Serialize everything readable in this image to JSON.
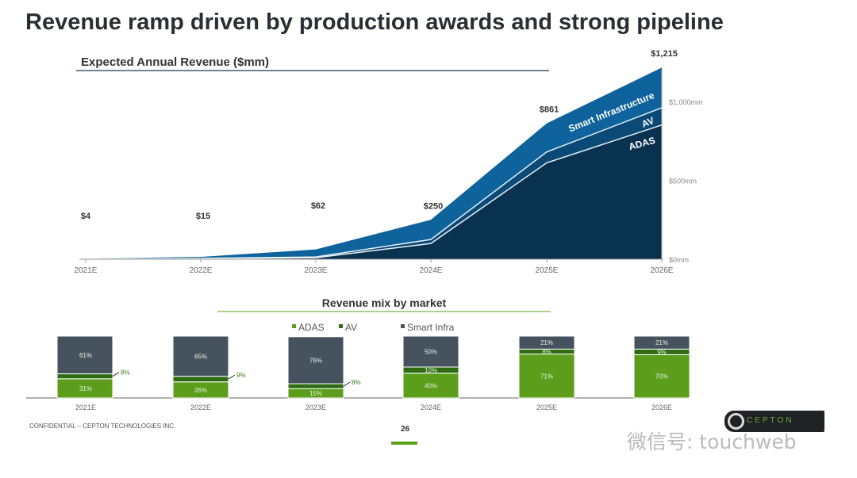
{
  "title": "Revenue ramp driven by production awards and strong pipeline",
  "footer": "CONFIDENTIAL – CEPTON TECHNOLOGIES INC.",
  "page_number": "26",
  "logo_text": "CEPTON",
  "watermark": "微信号: touchweb",
  "chart_data": [
    {
      "type": "area",
      "stacked": true,
      "title": "Expected Annual Revenue ($mm)",
      "categories": [
        "2021E",
        "2022E",
        "2023E",
        "2024E",
        "2025E",
        "2026E"
      ],
      "totals": [
        "$4",
        "$15",
        "$62",
        "$250",
        "$861",
        "$1,215"
      ],
      "total_values": [
        4,
        15,
        62,
        250,
        861,
        1215
      ],
      "series": [
        {
          "name": "ADAS",
          "values": [
            1.2,
            3.9,
            9.3,
            100,
            611,
            851
          ],
          "color": "#08324f"
        },
        {
          "name": "AV",
          "values": [
            0.3,
            1.4,
            5.0,
            25,
            69,
            109
          ],
          "color": "#0b4a76"
        },
        {
          "name": "Smart Infrastructure",
          "values": [
            2.5,
            9.7,
            47.7,
            125,
            181,
            255
          ],
          "color": "#0e639c"
        }
      ],
      "yticks": [
        "$0mm",
        "$500mm",
        "$1,000mm"
      ],
      "ytick_values": [
        0,
        500,
        1000
      ],
      "ylim": [
        0,
        1215
      ],
      "grid": false
    },
    {
      "type": "bar",
      "stacked": true,
      "percent": true,
      "title": "Revenue mix by market",
      "legend_position": "top",
      "categories": [
        "2021E",
        "2022E",
        "2023E",
        "2024E",
        "2025E",
        "2026E"
      ],
      "series": [
        {
          "name": "ADAS",
          "values": [
            31,
            26,
            15,
            40,
            71,
            70
          ],
          "color": "#5c9e1c"
        },
        {
          "name": "AV",
          "values": [
            8,
            9,
            8,
            10,
            8,
            9
          ],
          "color": "#2f6b12"
        },
        {
          "name": "Smart Infra",
          "values": [
            61,
            65,
            76,
            50,
            21,
            21
          ],
          "color": "#46535e"
        }
      ],
      "labels": [
        [
          "31%",
          "8%",
          "61%"
        ],
        [
          "26%",
          "9%",
          "65%"
        ],
        [
          "15%",
          "8%",
          "76%"
        ],
        [
          "40%",
          "10%",
          "50%"
        ],
        [
          "71%",
          "8%",
          "21%"
        ],
        [
          "70%",
          "9%",
          "21%"
        ]
      ]
    }
  ]
}
